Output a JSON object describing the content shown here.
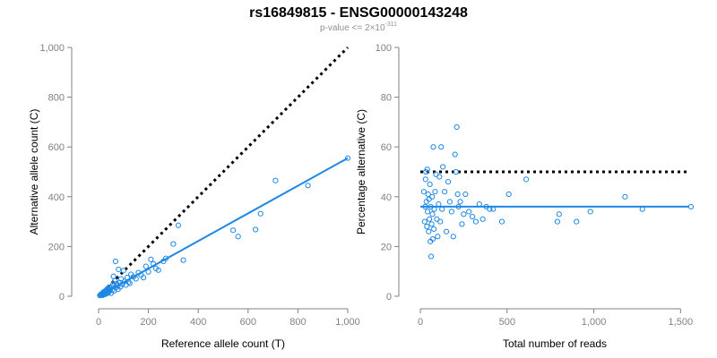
{
  "figure": {
    "title": "rs16849815 - ENSG00000143248",
    "subtitle_prefix": "p-value <= 2×10",
    "subtitle_exponent": "-311"
  },
  "colors": {
    "points": "#1e88e5",
    "fit_line": "#1e88e5",
    "reference_line": "#000000",
    "axis": "#808080",
    "tick_text": "#808080",
    "label_text": "#000000"
  },
  "chart_data": [
    {
      "type": "scatter",
      "xlabel": "Reference allele count (T)",
      "ylabel": "Alternative allele count (C)",
      "xlim": [
        0,
        1000
      ],
      "ylim": [
        0,
        1000
      ],
      "xticks": [
        0,
        200,
        400,
        600,
        800,
        1000
      ],
      "yticks": [
        0,
        200,
        400,
        600,
        800,
        1000
      ],
      "xtick_labels": [
        "0",
        "200",
        "400",
        "600",
        "800",
        "1,000"
      ],
      "ytick_labels": [
        "0",
        "200",
        "400",
        "600",
        "800",
        "1,000"
      ],
      "grid": false,
      "reference_line": {
        "style": "dotted",
        "x": [
          0,
          1000
        ],
        "y": [
          0,
          1000
        ]
      },
      "fit_line": {
        "style": "solid",
        "x": [
          0,
          1000
        ],
        "y": [
          0,
          555
        ]
      },
      "points": [
        [
          5,
          3
        ],
        [
          8,
          6
        ],
        [
          10,
          8
        ],
        [
          12,
          5
        ],
        [
          14,
          10
        ],
        [
          15,
          12
        ],
        [
          16,
          4
        ],
        [
          18,
          14
        ],
        [
          20,
          9
        ],
        [
          21,
          18
        ],
        [
          22,
          15
        ],
        [
          24,
          12
        ],
        [
          25,
          20
        ],
        [
          27,
          8
        ],
        [
          28,
          22
        ],
        [
          30,
          16
        ],
        [
          32,
          25
        ],
        [
          33,
          11
        ],
        [
          35,
          30
        ],
        [
          36,
          20
        ],
        [
          38,
          14
        ],
        [
          40,
          28
        ],
        [
          42,
          18
        ],
        [
          44,
          35
        ],
        [
          45,
          24
        ],
        [
          48,
          30
        ],
        [
          50,
          12
        ],
        [
          52,
          38
        ],
        [
          55,
          26
        ],
        [
          58,
          48
        ],
        [
          60,
          80
        ],
        [
          62,
          22
        ],
        [
          65,
          62
        ],
        [
          68,
          140
        ],
        [
          70,
          35
        ],
        [
          72,
          50
        ],
        [
          75,
          42
        ],
        [
          78,
          28
        ],
        [
          80,
          108
        ],
        [
          85,
          55
        ],
        [
          88,
          38
        ],
        [
          90,
          70
        ],
        [
          95,
          48
        ],
        [
          100,
          103
        ],
        [
          105,
          60
        ],
        [
          110,
          45
        ],
        [
          115,
          75
        ],
        [
          120,
          58
        ],
        [
          125,
          52
        ],
        [
          130,
          88
        ],
        [
          140,
          78
        ],
        [
          150,
          70
        ],
        [
          160,
          95
        ],
        [
          170,
          85
        ],
        [
          180,
          75
        ],
        [
          190,
          120
        ],
        [
          200,
          98
        ],
        [
          210,
          148
        ],
        [
          220,
          130
        ],
        [
          230,
          112
        ],
        [
          240,
          105
        ],
        [
          260,
          140
        ],
        [
          270,
          152
        ],
        [
          300,
          210
        ],
        [
          320,
          285
        ],
        [
          340,
          145
        ],
        [
          540,
          265
        ],
        [
          560,
          240
        ],
        [
          630,
          268
        ],
        [
          650,
          332
        ],
        [
          710,
          465
        ],
        [
          840,
          445
        ],
        [
          1000,
          555
        ]
      ]
    },
    {
      "type": "scatter",
      "xlabel": "Total number of reads",
      "ylabel": "Percentage alternative (C)",
      "xlim": [
        0,
        1550
      ],
      "ylim": [
        0,
        100
      ],
      "xticks": [
        0,
        500,
        1000,
        1500
      ],
      "yticks": [
        0,
        20,
        40,
        60,
        80,
        100
      ],
      "xtick_labels": [
        "0",
        "500",
        "1,000",
        "1,500"
      ],
      "ytick_labels": [
        "0",
        "20",
        "40",
        "60",
        "80",
        "100"
      ],
      "grid": false,
      "reference_line": {
        "style": "dotted",
        "x": [
          0,
          1550
        ],
        "y": [
          50,
          50
        ]
      },
      "fit_line": {
        "style": "solid",
        "x": [
          0,
          1550
        ],
        "y": [
          36,
          36
        ]
      },
      "points": [
        [
          20,
          42
        ],
        [
          25,
          30
        ],
        [
          28,
          36
        ],
        [
          30,
          47
        ],
        [
          32,
          50
        ],
        [
          35,
          38
        ],
        [
          38,
          28
        ],
        [
          40,
          51
        ],
        [
          42,
          34
        ],
        [
          45,
          41
        ],
        [
          48,
          26
        ],
        [
          50,
          39
        ],
        [
          52,
          31
        ],
        [
          55,
          45
        ],
        [
          58,
          22
        ],
        [
          60,
          36
        ],
        [
          62,
          16
        ],
        [
          65,
          29
        ],
        [
          68,
          40
        ],
        [
          70,
          33
        ],
        [
          72,
          23
        ],
        [
          75,
          60
        ],
        [
          78,
          27
        ],
        [
          80,
          35
        ],
        [
          85,
          42
        ],
        [
          90,
          49
        ],
        [
          95,
          31
        ],
        [
          100,
          24
        ],
        [
          105,
          37
        ],
        [
          110,
          48
        ],
        [
          115,
          30
        ],
        [
          120,
          60
        ],
        [
          125,
          35
        ],
        [
          130,
          52
        ],
        [
          140,
          42
        ],
        [
          150,
          26
        ],
        [
          160,
          46
        ],
        [
          170,
          38
        ],
        [
          180,
          34
        ],
        [
          190,
          24
        ],
        [
          200,
          57
        ],
        [
          205,
          50
        ],
        [
          210,
          68
        ],
        [
          215,
          41
        ],
        [
          220,
          36
        ],
        [
          230,
          38
        ],
        [
          240,
          29
        ],
        [
          250,
          33
        ],
        [
          260,
          41
        ],
        [
          280,
          34
        ],
        [
          300,
          32
        ],
        [
          320,
          30
        ],
        [
          340,
          37
        ],
        [
          360,
          31
        ],
        [
          380,
          36
        ],
        [
          400,
          35
        ],
        [
          420,
          35
        ],
        [
          470,
          30
        ],
        [
          510,
          41
        ],
        [
          610,
          47
        ],
        [
          790,
          30
        ],
        [
          800,
          33
        ],
        [
          900,
          30
        ],
        [
          980,
          34
        ],
        [
          1180,
          40
        ],
        [
          1280,
          35
        ],
        [
          1560,
          36
        ]
      ]
    }
  ]
}
